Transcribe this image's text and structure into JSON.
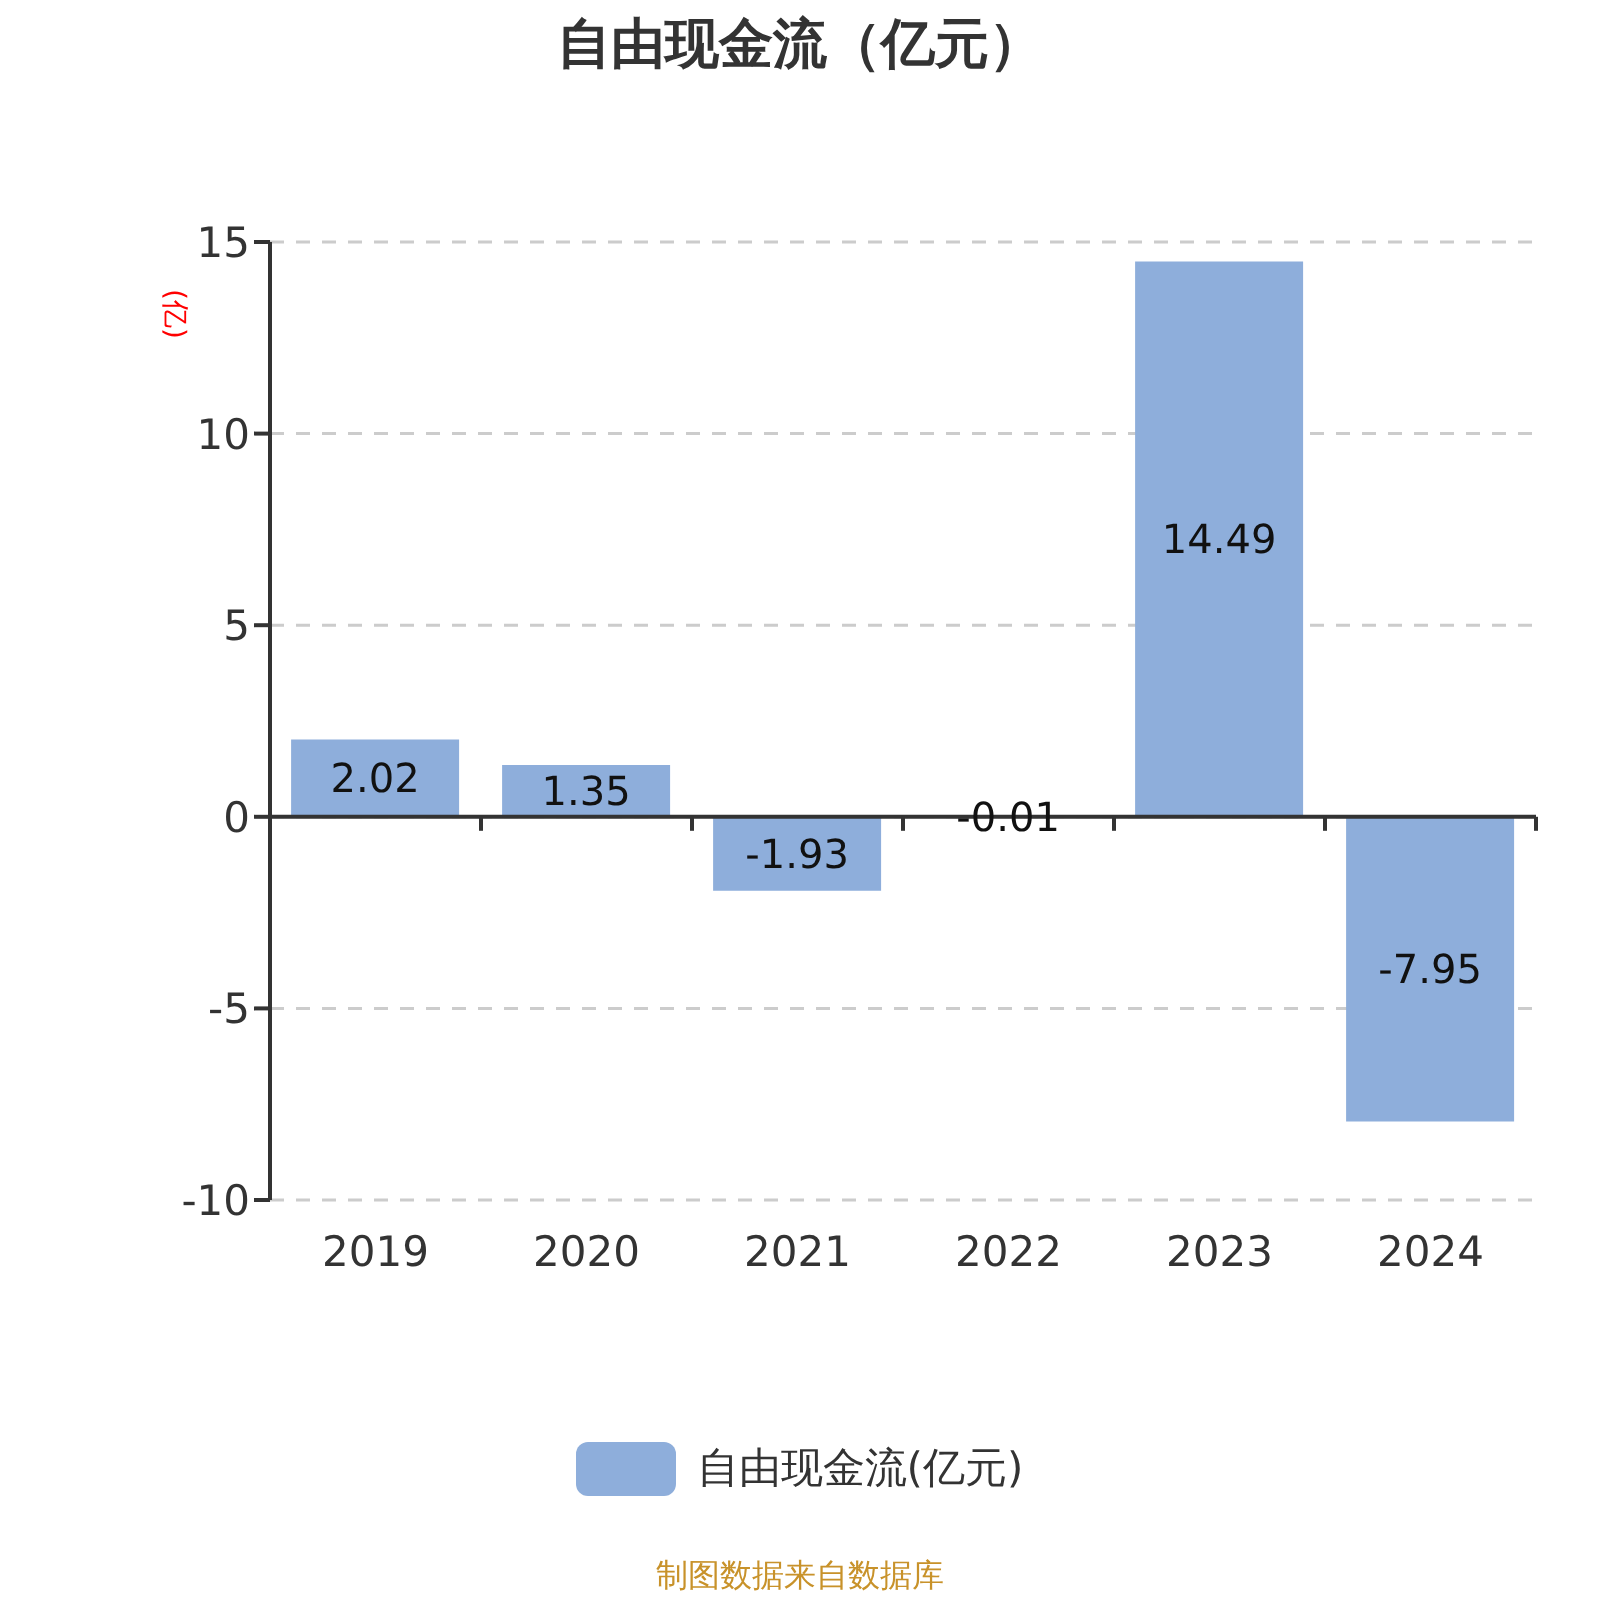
{
  "chart_data": {
    "type": "bar",
    "title": "自由现金流（亿元）",
    "ylabel": "(亿)",
    "categories": [
      "2019",
      "2020",
      "2021",
      "2022",
      "2023",
      "2024"
    ],
    "series": [
      {
        "name": "自由现金流(亿元)",
        "color": "#8eaedb",
        "values": [
          2.02,
          1.35,
          -1.93,
          -0.01,
          14.49,
          -7.95
        ]
      }
    ],
    "ylim": [
      -10,
      15
    ],
    "yticks": [
      -10,
      -5,
      0,
      5,
      10,
      15
    ],
    "grid": "y",
    "legend": "bottom",
    "data_labels": true,
    "annotations": [
      "制图数据来自数据库"
    ]
  }
}
